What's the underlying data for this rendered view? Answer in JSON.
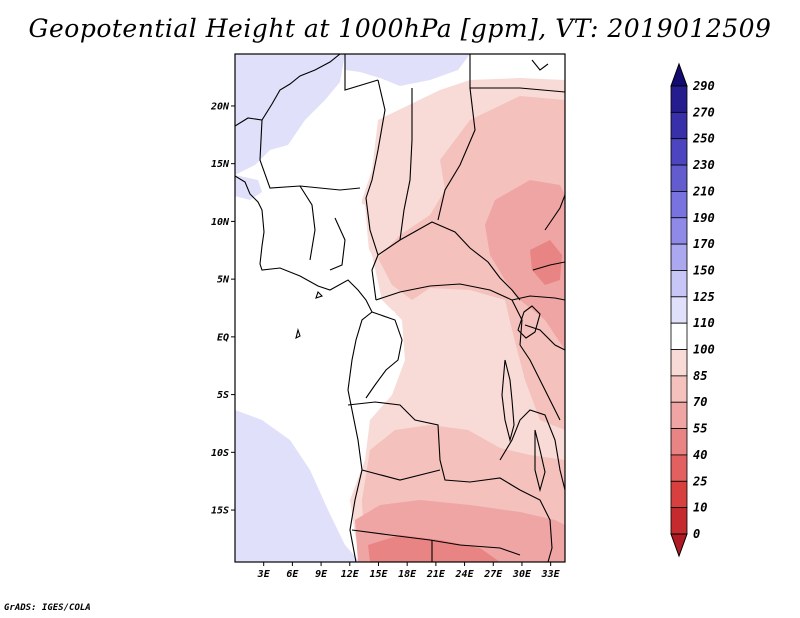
{
  "title": "Geopotential Height at 1000hPa [gpm], VT: 2019012509",
  "footer": "GrADS: IGES/COLA",
  "chart_data": {
    "type": "heatmap",
    "title": "Geopotential Height at 1000hPa [gpm], VT: 2019012509",
    "field": "Geopotential Height",
    "level": "1000hPa",
    "units": "gpm",
    "valid_time": "2019012509",
    "x_ticks": [
      "3E",
      "6E",
      "9E",
      "12E",
      "15E",
      "18E",
      "21E",
      "24E",
      "27E",
      "30E",
      "33E"
    ],
    "y_ticks": [
      "20N",
      "15N",
      "10N",
      "5N",
      "EQ",
      "5S",
      "10S",
      "15S"
    ],
    "lon_range": [
      0,
      34.5
    ],
    "lat_range": [
      -19.5,
      24.5
    ],
    "colorbar": {
      "labels": [
        "0",
        "10",
        "25",
        "40",
        "55",
        "70",
        "85",
        "100",
        "110",
        "125",
        "150",
        "170",
        "190",
        "210",
        "230",
        "250",
        "270",
        "290"
      ],
      "colors": [
        "#b01a24",
        "#c52a2e",
        "#d8403f",
        "#e36060",
        "#e98484",
        "#efa5a3",
        "#f4c1bd",
        "#f8dad6",
        "#ffffff",
        "#e0e0fa",
        "#c7c6f6",
        "#aba8f0",
        "#8f8ae8",
        "#7873de",
        "#625ccf",
        "#4d45bf",
        "#3730a8",
        "#251d8e",
        "#140b72"
      ],
      "extends": "both"
    }
  }
}
